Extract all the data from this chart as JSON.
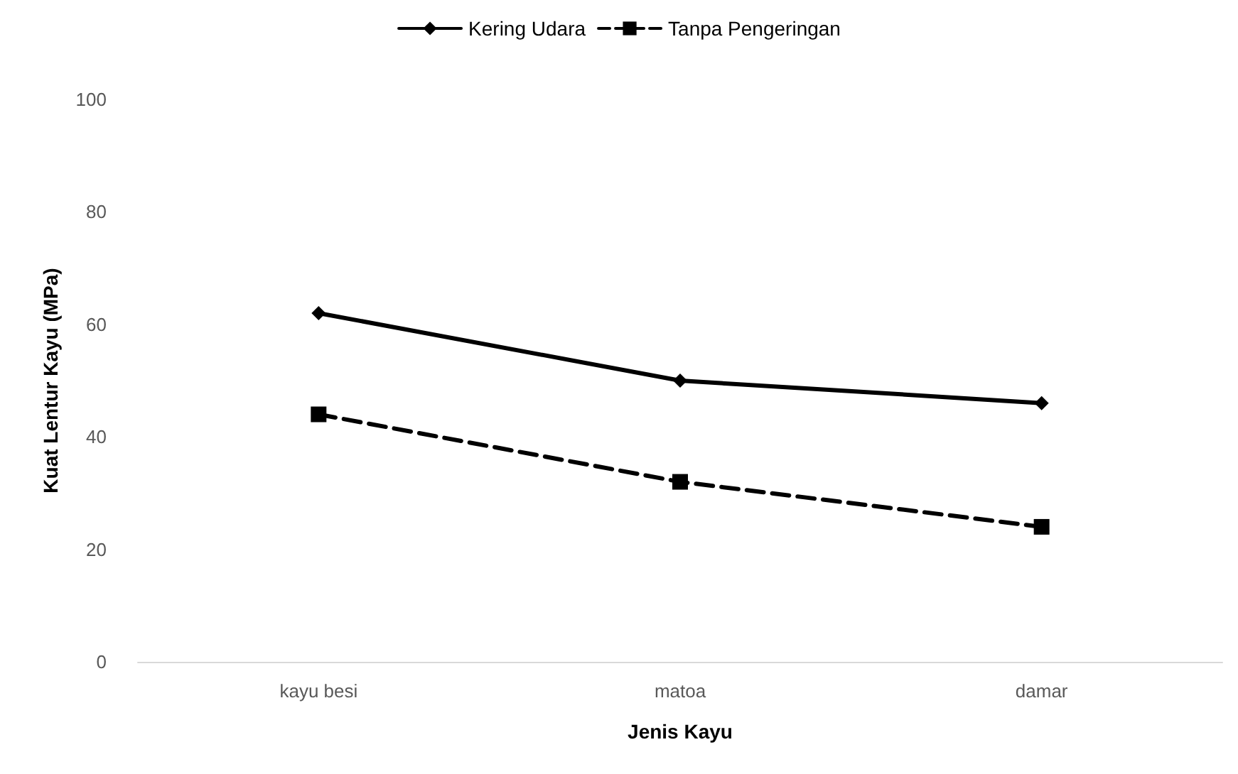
{
  "chart_data": {
    "type": "line",
    "xlabel": "Jenis Kayu",
    "ylabel": "Kuat Lentur Kayu (MPa)",
    "categories": [
      "kayu besi",
      "matoa",
      "damar"
    ],
    "series": [
      {
        "name": "Kering Udara",
        "color": "#000000",
        "values": [
          62,
          50,
          46
        ],
        "marker": "diamond",
        "line_style": "solid"
      },
      {
        "name": "Tanpa Pengeringan",
        "color": "#000000",
        "values": [
          44,
          32,
          24
        ],
        "marker": "square",
        "line_style": "dashed"
      }
    ],
    "ylim": [
      0,
      100
    ],
    "yticks": [
      0,
      20,
      40,
      60,
      80,
      100
    ],
    "grid": false,
    "legend": "top"
  }
}
